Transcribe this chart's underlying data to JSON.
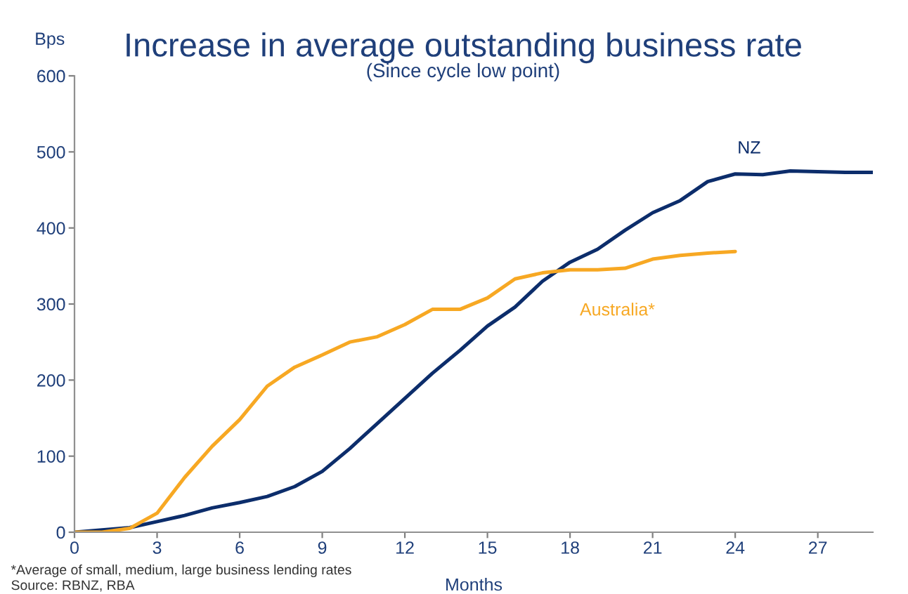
{
  "chart_data": {
    "type": "line",
    "title": "Increase in average outstanding business rate",
    "subtitle": "(Since cycle low point)",
    "xlabel": "Months",
    "ylabel": "Bps",
    "series": [
      {
        "name": "NZ",
        "color": "#0c2d6b",
        "x": [
          0,
          1,
          2,
          3,
          4,
          5,
          6,
          7,
          8,
          9,
          10,
          11,
          12,
          13,
          14,
          15,
          16,
          17,
          18,
          19,
          20,
          21,
          22,
          23,
          24,
          25,
          26,
          27,
          28,
          29
        ],
        "values": [
          0,
          3,
          6,
          14,
          22,
          32,
          39,
          47,
          60,
          80,
          110,
          143,
          176,
          209,
          239,
          271,
          296,
          330,
          355,
          372,
          397,
          420,
          436,
          461,
          471,
          470,
          475,
          474,
          473,
          473
        ]
      },
      {
        "name": "Australia*",
        "color": "#f7a823",
        "x": [
          0,
          1,
          2,
          3,
          4,
          5,
          6,
          7,
          8,
          9,
          10,
          11,
          12,
          13,
          14,
          15,
          16,
          17,
          18,
          19,
          20,
          21,
          22,
          23,
          24
        ],
        "values": [
          0,
          0,
          5,
          25,
          72,
          113,
          148,
          192,
          217,
          233,
          250,
          257,
          273,
          293,
          293,
          308,
          333,
          341,
          345,
          345,
          347,
          359,
          364,
          367,
          369
        ]
      }
    ],
    "xlim": [
      0,
      29
    ],
    "xticks": [
      0,
      3,
      6,
      9,
      12,
      15,
      18,
      21,
      24,
      27
    ],
    "ylim": [
      0,
      600
    ],
    "yticks": [
      0,
      100,
      200,
      300,
      400,
      500,
      600
    ],
    "grid": false,
    "legend": false,
    "marker": "none",
    "line_style": "solid",
    "annotations": [
      "*Average of small, medium, large business lending rates",
      "Source: RBNZ, RBA"
    ]
  }
}
